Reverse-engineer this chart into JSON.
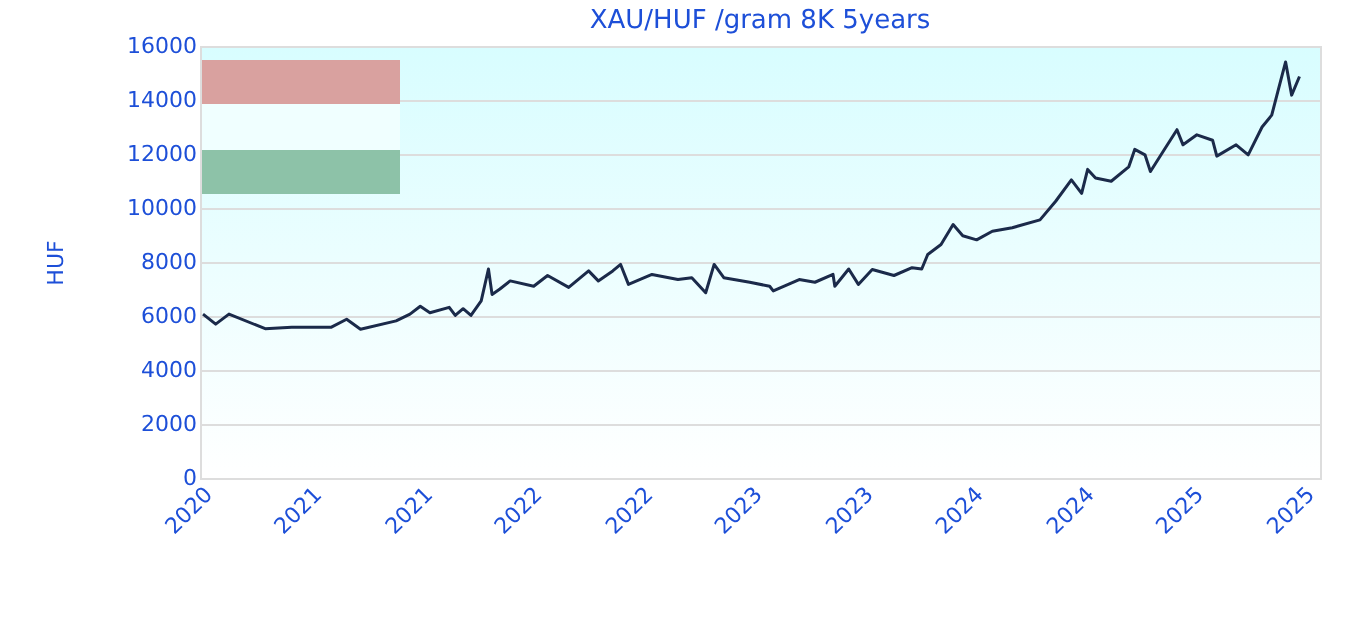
{
  "chart_data": {
    "type": "line",
    "title": "XAU/HUF /gram 8K 5years",
    "ylabel": "HUF",
    "x": [
      "2020-11-13",
      "2020-12-04",
      "2020-12-26",
      "2021-02-24",
      "2021-04-09",
      "2021-06-13",
      "2021-07-09",
      "2021-08-01",
      "2021-09-29",
      "2021-10-22",
      "2021-11-08",
      "2021-11-24",
      "2021-12-26",
      "2022-01-05",
      "2022-01-18",
      "2022-01-31",
      "2022-02-17",
      "2022-03-01",
      "2022-03-07",
      "2022-03-20",
      "2022-04-06",
      "2022-05-15",
      "2022-06-07",
      "2022-07-12",
      "2022-08-14",
      "2022-08-30",
      "2022-09-23",
      "2022-10-06",
      "2022-10-19",
      "2022-11-27",
      "2023-01-09",
      "2023-02-01",
      "2023-02-24",
      "2023-03-10",
      "2023-03-26",
      "2023-05-08",
      "2023-06-10",
      "2023-06-16",
      "2023-07-29",
      "2023-08-24",
      "2023-09-23",
      "2023-09-26",
      "2023-10-19",
      "2023-11-04",
      "2023-11-27",
      "2024-01-02",
      "2024-02-01",
      "2024-02-17",
      "2024-02-27",
      "2024-03-20",
      "2024-04-09",
      "2024-04-25",
      "2024-05-18",
      "2024-06-13",
      "2024-07-16",
      "2024-08-31",
      "2024-09-26",
      "2024-10-22",
      "2024-11-08",
      "2024-11-18",
      "2024-12-01",
      "2024-12-27",
      "2025-01-25",
      "2025-02-04",
      "2025-02-21",
      "2025-03-02",
      "2025-03-23",
      "2025-04-15",
      "2025-04-25",
      "2025-05-18",
      "2025-06-13",
      "2025-06-20",
      "2025-07-22",
      "2025-08-11",
      "2025-09-03",
      "2025-09-19",
      "2025-09-29",
      "2025-10-12",
      "2025-10-22",
      "2025-11-04"
    ],
    "series": [
      {
        "color": "#1b2a4a",
        "values": [
          6070,
          5700,
          6070,
          5530,
          5580,
          5580,
          5880,
          5510,
          5820,
          6070,
          6360,
          6120,
          6320,
          6020,
          6270,
          6020,
          6560,
          7740,
          6800,
          7000,
          7300,
          7100,
          7500,
          7060,
          7670,
          7300,
          7670,
          7910,
          7170,
          7540,
          7350,
          7420,
          6860,
          7910,
          7420,
          7250,
          7100,
          6930,
          7350,
          7250,
          7540,
          7100,
          7740,
          7170,
          7720,
          7500,
          7790,
          7740,
          8280,
          8650,
          9390,
          8970,
          8820,
          9140,
          9270,
          9560,
          10250,
          11040,
          10540,
          11430,
          11110,
          10990,
          11520,
          12170,
          11970,
          11350,
          12090,
          12900,
          12340,
          12710,
          12510,
          11920,
          12340,
          11970,
          13000,
          13440,
          14300,
          15410,
          14180,
          14870
        ]
      }
    ],
    "xlim": [
      "2020-11-08",
      "2025-12-08"
    ],
    "xticks": [
      {
        "value": "2020-11-08",
        "label": "2020"
      },
      {
        "value": "2021-05-08",
        "label": "2021"
      },
      {
        "value": "2021-11-08",
        "label": "2021"
      },
      {
        "value": "2022-05-08",
        "label": "2022"
      },
      {
        "value": "2022-11-08",
        "label": "2022"
      },
      {
        "value": "2023-05-08",
        "label": "2023"
      },
      {
        "value": "2023-11-08",
        "label": "2023"
      },
      {
        "value": "2024-05-08",
        "label": "2024"
      },
      {
        "value": "2024-11-08",
        "label": "2024"
      },
      {
        "value": "2025-05-08",
        "label": "2025"
      },
      {
        "value": "2025-11-08",
        "label": "2025"
      }
    ],
    "ylim": [
      0,
      16000
    ],
    "yticks": [
      0,
      2000,
      4000,
      6000,
      8000,
      10000,
      12000,
      14000,
      16000
    ],
    "grid": "y",
    "legend": false,
    "marker": "none",
    "line_style": "solid"
  }
}
